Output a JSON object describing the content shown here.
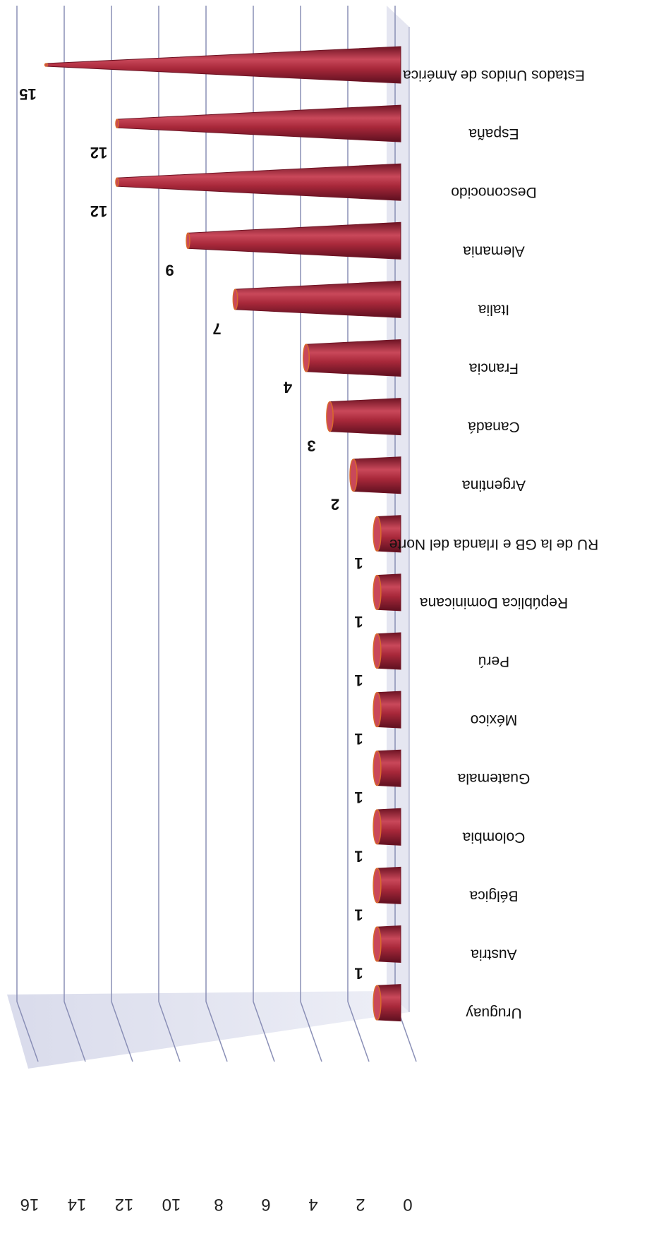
{
  "chart_data": {
    "type": "bar",
    "orientation": "rotated-180",
    "categories": [
      "Estados Unidos de América",
      "España",
      "Desconocido",
      "Alemania",
      "Italia",
      "Francia",
      "Canadá",
      "Argentina",
      "RU de la GB e Irlanda del Norte",
      "República Dominicana",
      "Perú",
      "México",
      "Guatemala",
      "Colombia",
      "Bélgica",
      "Austria",
      "Uruguay"
    ],
    "values": [
      15,
      12,
      12,
      9,
      7,
      4,
      3,
      2,
      1,
      1,
      1,
      1,
      1,
      1,
      1,
      1,
      1
    ],
    "data_labels": [
      "15",
      "12",
      "12",
      "9",
      "7",
      "4",
      "3",
      "2",
      "1",
      "1",
      "1",
      "1",
      "1",
      "1",
      "1",
      "1",
      ""
    ],
    "value_axis": {
      "ticks": [
        0,
        2,
        4,
        6,
        8,
        10,
        12,
        14,
        16
      ],
      "tick_labels": [
        "0",
        "2",
        "4",
        "6",
        "8",
        "10",
        "12",
        "14",
        "16"
      ],
      "range": [
        0,
        16
      ]
    },
    "grid": true,
    "legend": "none",
    "colors": {
      "bar": "#a8283a",
      "bar_dark": "#6e1424",
      "bar_light": "#c9485a",
      "bar_edge": "#d96a2a",
      "wall": "#d7d9ea",
      "floor": "#cfd2e6",
      "grid": "#8a8fb6"
    }
  }
}
